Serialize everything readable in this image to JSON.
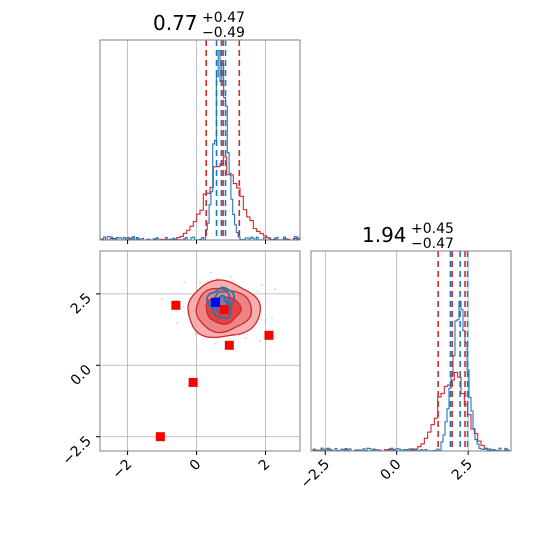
{
  "colors": {
    "samples_a": "#d62728",
    "samples_b": "#1f77b4",
    "markers": "#ff0000",
    "truth": "#0000ff",
    "grid": "#b0b0b0",
    "frame": "#808080"
  },
  "chart_data": {
    "type": "corner",
    "parameters": [
      {
        "title": {
          "median": "0.77",
          "plus": "+0.47",
          "minus": "−0.49"
        },
        "range": [
          -2.8,
          3.0
        ],
        "ticks": [
          -2,
          0,
          2
        ],
        "tick_labels": [
          "−2",
          "0",
          "2"
        ],
        "quantile_lines_a": [
          0.28,
          0.77,
          1.24
        ],
        "quantile_lines_b": [
          0.58,
          0.72,
          0.84
        ],
        "histogram_a": {
          "center": 0.77,
          "sigma": 0.5,
          "peak": 0.37
        },
        "histogram_b": {
          "center": 0.72,
          "sigma": 0.18,
          "peak": 0.92
        }
      },
      {
        "title": {
          "median": "1.94",
          "plus": "+0.45",
          "minus": "−0.47"
        },
        "range": [
          -3.0,
          4.0
        ],
        "ticks": [
          -2.5,
          0.0,
          2.5
        ],
        "tick_labels": [
          "−2.5",
          "0.0",
          "2.5"
        ],
        "quantile_lines_a": [
          1.45,
          1.94,
          2.39
        ],
        "quantile_lines_b": [
          1.88,
          2.22,
          2.48
        ],
        "histogram_a": {
          "center": 1.94,
          "sigma": 0.47,
          "peak": 0.38
        },
        "histogram_b": {
          "center": 2.2,
          "sigma": 0.26,
          "peak": 0.74
        }
      }
    ],
    "scatter_2d": {
      "x_range": [
        -2.8,
        3.0
      ],
      "y_range": [
        -3.0,
        4.0
      ],
      "x_ticks": [
        -2,
        0,
        2
      ],
      "x_tick_labels": [
        "−2",
        "0",
        "2"
      ],
      "y_ticks": [
        -2.5,
        0.0,
        2.5
      ],
      "y_tick_labels": [
        "−2.5",
        "0.0",
        "2.5"
      ],
      "contours_a_center": [
        0.77,
        1.94
      ],
      "contours_a_sigma": [
        0.5,
        0.47
      ],
      "contours_b_center": [
        0.72,
        2.2
      ],
      "contours_b_sigma": [
        0.18,
        0.26
      ],
      "marker_points": [
        [
          -0.6,
          2.1
        ],
        [
          0.95,
          0.7
        ],
        [
          2.1,
          1.05
        ],
        [
          -0.1,
          -0.6
        ],
        [
          -1.05,
          -2.5
        ],
        [
          0.8,
          1.95
        ]
      ],
      "truth_point": [
        0.55,
        2.2
      ]
    }
  }
}
